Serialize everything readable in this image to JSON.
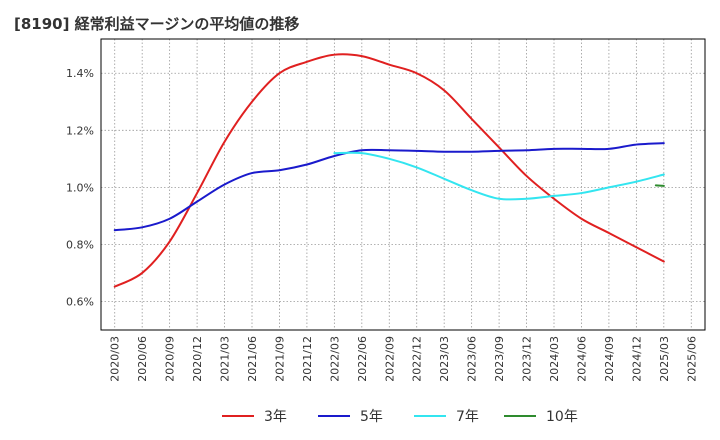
{
  "chart_data": {
    "type": "line",
    "title": "[8190]  経常利益マージンの平均値の推移",
    "xlabel": "",
    "ylabel": "",
    "x": [
      "2020/03",
      "2020/06",
      "2020/09",
      "2020/12",
      "2021/03",
      "2021/06",
      "2021/09",
      "2021/12",
      "2022/03",
      "2022/06",
      "2022/09",
      "2022/12",
      "2023/03",
      "2023/06",
      "2023/09",
      "2023/12",
      "2024/03",
      "2024/06",
      "2024/09",
      "2024/12",
      "2025/03",
      "2025/06"
    ],
    "ylim": [
      0.5,
      1.52
    ],
    "yticks": [
      0.6,
      0.8,
      1.0,
      1.2,
      1.4
    ],
    "ytick_labels": [
      "0.6%",
      "0.8%",
      "1.0%",
      "1.2%",
      "1.4%"
    ],
    "grid": true,
    "legend_position": "bottom",
    "series": [
      {
        "name": "3年",
        "color": "#e02020",
        "values": [
          0.652,
          0.7,
          0.81,
          0.98,
          1.16,
          1.3,
          1.4,
          1.44,
          1.465,
          1.46,
          1.43,
          1.4,
          1.34,
          1.24,
          1.14,
          1.04,
          0.96,
          0.89,
          0.84,
          0.79,
          0.74,
          null
        ]
      },
      {
        "name": "5年",
        "color": "#1a1acc",
        "values": [
          0.85,
          0.86,
          0.89,
          0.95,
          1.01,
          1.05,
          1.06,
          1.08,
          1.11,
          1.13,
          1.13,
          1.128,
          1.125,
          1.125,
          1.128,
          1.13,
          1.135,
          1.135,
          1.135,
          1.15,
          1.155,
          null
        ]
      },
      {
        "name": "7年",
        "color": "#33e5f0",
        "values": [
          null,
          null,
          null,
          null,
          null,
          null,
          null,
          null,
          1.12,
          1.12,
          1.1,
          1.07,
          1.03,
          0.99,
          0.96,
          0.96,
          0.97,
          0.98,
          1.0,
          1.02,
          1.045,
          null
        ]
      },
      {
        "name": "10年",
        "color": "#2e8b2e",
        "values": [
          null,
          null,
          null,
          null,
          null,
          null,
          null,
          null,
          null,
          null,
          null,
          null,
          null,
          null,
          null,
          null,
          null,
          null,
          null,
          null,
          1.005,
          null
        ]
      }
    ]
  }
}
